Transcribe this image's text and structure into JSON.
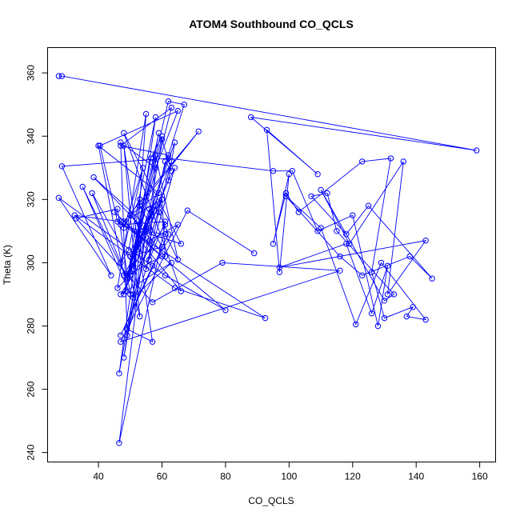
{
  "chart_data": {
    "type": "line",
    "title": "ATOM4 Southbound CO_QCLS",
    "xlabel": "CO_QCLS",
    "ylabel": "Theta (K)",
    "xlim": [
      24,
      165
    ],
    "ylim": [
      237,
      368
    ],
    "xticks": [
      40,
      60,
      80,
      100,
      120,
      140,
      160
    ],
    "yticks": [
      240,
      260,
      280,
      300,
      320,
      340,
      360
    ],
    "grid": false,
    "markers": "open-circle",
    "color": "#0000FF",
    "series": [
      {
        "x": [
          27.5,
          28.5,
          159,
          88,
          109,
          93,
          97,
          100,
          95,
          99,
          103,
          123,
          132,
          126,
          130,
          139,
          137,
          143,
          129,
          121,
          110,
          99,
          116,
          123,
          138,
          145,
          125,
          118,
          107,
          112,
          115,
          133,
          130,
          110,
          119,
          136,
          131,
          143,
          97,
          118,
          126,
          131,
          128,
          120,
          109,
          101,
          95,
          62,
          28.5,
          44,
          27.5,
          61,
          80,
          47,
          32.5,
          64,
          92.5,
          46,
          40.5,
          65,
          58,
          47,
          49,
          57,
          48,
          53,
          50,
          46,
          55,
          51,
          46.5,
          58,
          49.5,
          47,
          54,
          48,
          53,
          48.5,
          56,
          50,
          56.5,
          60,
          48,
          63,
          47,
          62,
          54,
          67,
          62,
          49,
          59,
          51,
          62,
          64,
          49,
          60,
          45,
          52,
          55,
          59,
          62,
          47,
          57,
          65,
          56,
          60,
          52,
          63,
          59,
          51,
          63,
          47,
          61,
          46.5,
          55,
          64,
          49,
          61,
          63,
          60,
          48,
          54,
          61,
          65,
          58,
          56,
          61,
          47,
          66,
          48,
          66,
          53,
          58,
          50,
          60,
          53,
          71.5,
          48,
          60,
          61,
          50,
          59,
          40,
          48,
          56,
          38.5,
          53,
          51,
          38,
          49,
          35,
          50,
          46,
          33,
          57,
          79,
          116,
          47,
          68,
          89
        ],
        "y": [
          359,
          359,
          335.5,
          346,
          328,
          342,
          297,
          328,
          306,
          322,
          316,
          332,
          333,
          297,
          282.5,
          286,
          283,
          282,
          300,
          280.5,
          311,
          321,
          302,
          296,
          302,
          295,
          318,
          309,
          321,
          322,
          310,
          290,
          288,
          323,
          306,
          332,
          290,
          307,
          298.5,
          306,
          284,
          299,
          280,
          315,
          310,
          329,
          329,
          333,
          330.5,
          296,
          320.5,
          296,
          285,
          313,
          315,
          292,
          282.5,
          313,
          337,
          348,
          330,
          338,
          279,
          275,
          337,
          283,
          296,
          292,
          347,
          290,
          265,
          346,
          304,
          300,
          330,
          311,
          320,
          291,
          317,
          297,
          333,
          340,
          290,
          349,
          337,
          334,
          308,
          350,
          351,
          295,
          341,
          298,
          326,
          338,
          296,
          302,
          316,
          309,
          298,
          316,
          309,
          277,
          299,
          312,
          307,
          320,
          304,
          332,
          317,
          289,
          300,
          290,
          312,
          243,
          311,
          330,
          277,
          332,
          329,
          339,
          270,
          310,
          309,
          301,
          334,
          301,
          313,
          312,
          306,
          341,
          291,
          307,
          318,
          302,
          305,
          318,
          341.5,
          313,
          320,
          302,
          315,
          322,
          337,
          296,
          311,
          327,
          312,
          299,
          322,
          295,
          324,
          290,
          317,
          314,
          287.5,
          300,
          297.5,
          275,
          316.5,
          303
        ]
      }
    ]
  }
}
